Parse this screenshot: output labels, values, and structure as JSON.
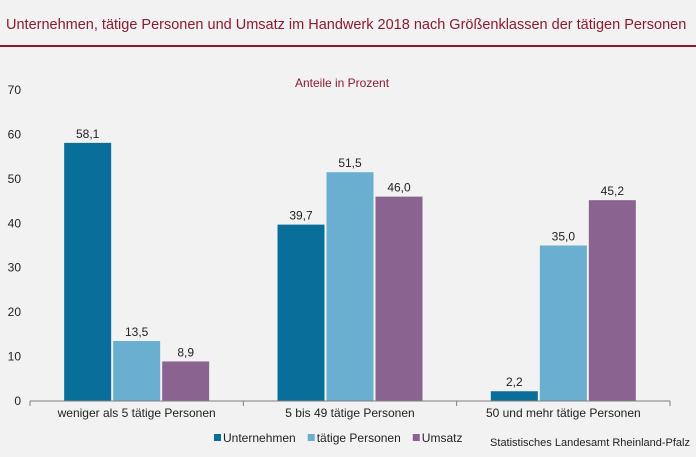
{
  "header": {
    "title": "Unternehmen, tätige Personen und Umsatz im Handwerk 2018 nach Größenklassen der tätigen Personen"
  },
  "source": "Statistisches Landesamt Rheinland-Pfalz",
  "chart_data": {
    "type": "bar",
    "title": "Unternehmen, tätige Personen und Umsatz im Handwerk 2018 nach Größenklassen der tätigen Personen",
    "subtitle": "Anteile in Prozent",
    "xlabel": "",
    "ylabel": "",
    "ylim": [
      0,
      70
    ],
    "yticks": [
      0,
      10,
      20,
      30,
      40,
      50,
      60,
      70
    ],
    "grid": false,
    "legend_position": "bottom",
    "categories": [
      "weniger als 5 tätige Personen",
      "5 bis 49 tätige Personen",
      "50 und mehr tätige Personen"
    ],
    "series": [
      {
        "name": "Unternehmen",
        "color": "#0a6e9b",
        "values": [
          58.1,
          39.7,
          2.2
        ],
        "labels": [
          "58,1",
          "39,7",
          "2,2"
        ]
      },
      {
        "name": "tätige Personen",
        "color": "#6aafcf",
        "values": [
          13.5,
          51.5,
          35.0
        ],
        "labels": [
          "13,5",
          "51,5",
          "35,0"
        ]
      },
      {
        "name": "Umsatz",
        "color": "#8b6391",
        "values": [
          8.9,
          46.0,
          45.2
        ],
        "labels": [
          "8,9",
          "46,0",
          "45,2"
        ]
      }
    ]
  }
}
